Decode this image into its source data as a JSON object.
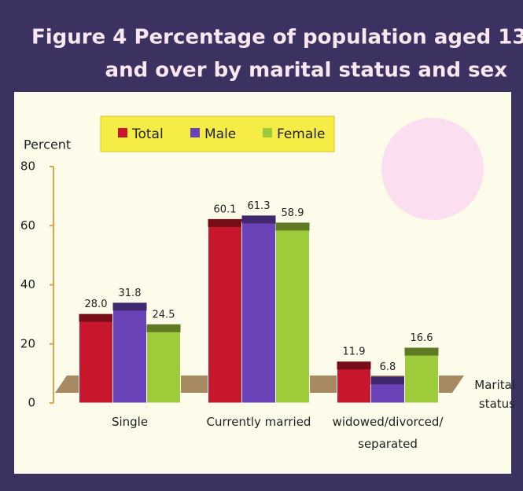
{
  "chart_data": {
    "type": "bar",
    "title": "Figure 4  Percentage of population aged 13 years",
    "subtitle": "and over by marital status and sex",
    "y_label": "Percent",
    "x_label": "Marital status",
    "categories": [
      "Single",
      "Currently married",
      "widowed/divorced/ separated"
    ],
    "series": [
      {
        "name": "Total",
        "color": "#c8162c",
        "values": [
          28.0,
          60.1,
          11.9
        ],
        "value_labels": [
          "28.0",
          "60.1",
          "11.9"
        ]
      },
      {
        "name": "Male",
        "color": "#6b43b8",
        "values": [
          31.8,
          61.3,
          6.8
        ],
        "value_labels": [
          "31.8",
          "61.3",
          "6.8"
        ]
      },
      {
        "name": "Female",
        "color": "#9dcb3a",
        "values": [
          24.5,
          58.9,
          16.6
        ],
        "value_labels": [
          "24.5",
          "58.9",
          "16.6"
        ]
      }
    ],
    "ylim": [
      0,
      80
    ],
    "yticks": [
      0,
      20,
      40,
      60,
      80
    ]
  }
}
